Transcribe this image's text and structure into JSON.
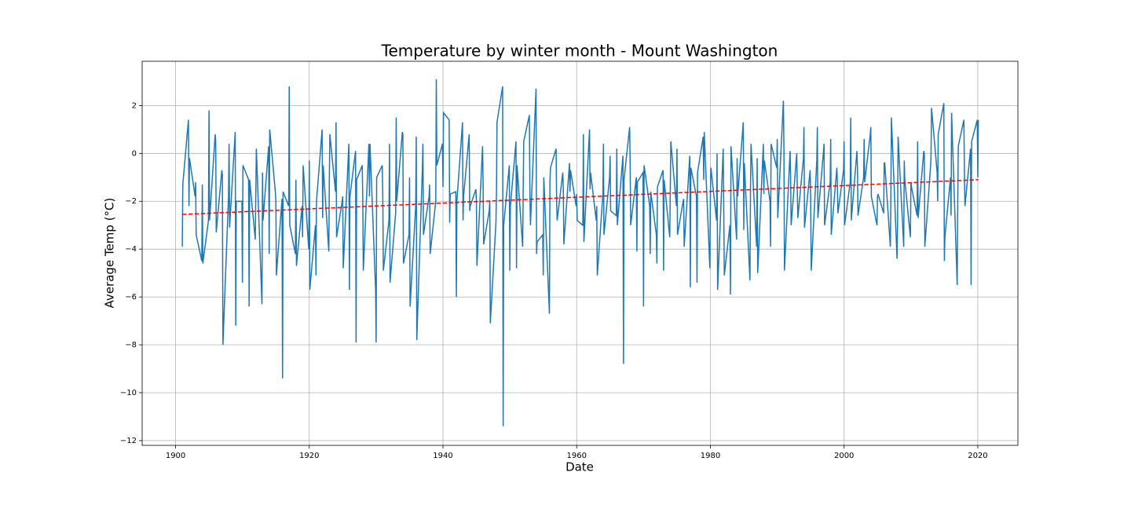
{
  "chart_data": {
    "type": "line",
    "title": "Temperature by winter month - Mount Washington",
    "x_label": "Date",
    "y_label": "Average Temp (°C)",
    "xlim": [
      1895,
      2026
    ],
    "xticks": [
      1900,
      1920,
      1940,
      1960,
      1980,
      2000,
      2020
    ],
    "ylim": [
      -12.2,
      3.85
    ],
    "yticks": [
      {
        "value": -12,
        "label": "−12"
      },
      {
        "value": -10,
        "label": "−10"
      },
      {
        "value": -8,
        "label": "−8"
      },
      {
        "value": -6,
        "label": "−6"
      },
      {
        "value": -4,
        "label": "−4"
      },
      {
        "value": -2,
        "label": "−2"
      },
      0,
      2
    ],
    "grid": true,
    "series": [
      {
        "color": "#1f77b4",
        "dash": false,
        "x": [
          1901,
          1901.08,
          1901.92,
          1902,
          1902.08,
          1902.92,
          1903,
          1903.08,
          1903.92,
          1904,
          1904.08,
          1904.92,
          1905,
          1905.08,
          1905.92,
          1906,
          1906.08,
          1906.92,
          1907,
          1907.08,
          1907.92,
          1908,
          1908.08,
          1908.92,
          1909,
          1909.08,
          1909.92,
          1910,
          1910.08,
          1910.92,
          1911,
          1911.08,
          1911.92,
          1912,
          1912.08,
          1912.92,
          1913,
          1913.08,
          1913.92,
          1914,
          1914.08,
          1914.92,
          1915,
          1915.08,
          1915.92,
          1916,
          1916.08,
          1916.92,
          1917,
          1917.08,
          1917.92,
          1918,
          1918.08,
          1918.92,
          1919,
          1919.08,
          1919.92,
          1920,
          1920.08,
          1920.92,
          1921,
          1921.08,
          1921.92,
          1922,
          1922.08,
          1922.92,
          1923,
          1923.08,
          1923.92,
          1924,
          1924.08,
          1924.92,
          1925,
          1925.08,
          1925.92,
          1926,
          1926.08,
          1926.92,
          1927,
          1927.08,
          1927.92,
          1928,
          1928.08,
          1928.92,
          1929,
          1929.08,
          1929.92,
          1930,
          1930.08,
          1930.92,
          1931,
          1931.08,
          1931.92,
          1932,
          1932.08,
          1932.92,
          1933,
          1933.08,
          1933.92,
          1934,
          1934.08,
          1934.92,
          1935,
          1935.08,
          1935.92,
          1936,
          1936.08,
          1936.92,
          1937,
          1937.08,
          1937.92,
          1938,
          1938.08,
          1938.92,
          1939,
          1939.08,
          1939.92,
          1940,
          1940.08,
          1940.92,
          1941,
          1941.08,
          1941.92,
          1942,
          1942.08,
          1942.92,
          1943,
          1943.08,
          1943.92,
          1944,
          1944.08,
          1944.92,
          1945,
          1945.08,
          1945.92,
          1946,
          1946.08,
          1946.92,
          1947,
          1947.08,
          1947.92,
          1948,
          1948.08,
          1948.92,
          1949,
          1949.08,
          1949.92,
          1950,
          1950.08,
          1950.92,
          1951,
          1951.08,
          1951.92,
          1952,
          1952.08,
          1952.92,
          1953,
          1953.08,
          1953.92,
          1954,
          1954.08,
          1954.92,
          1955,
          1955.08,
          1955.92,
          1956,
          1956.08,
          1956.92,
          1957,
          1957.08,
          1957.92,
          1958,
          1958.08,
          1958.92,
          1959,
          1959.08,
          1959.92,
          1960,
          1960.08,
          1960.92,
          1961,
          1961.08,
          1961.92,
          1962,
          1962.08,
          1962.92,
          1963,
          1963.08,
          1963.92,
          1964,
          1964.08,
          1964.92,
          1965,
          1965.08,
          1965.92,
          1966,
          1966.08,
          1966.92,
          1967,
          1967.08,
          1967.92,
          1968,
          1968.08,
          1968.92,
          1969,
          1969.08,
          1969.92,
          1970,
          1970.08,
          1970.92,
          1971,
          1971.08,
          1971.92,
          1972,
          1972.08,
          1972.92,
          1973,
          1973.08,
          1973.92,
          1974,
          1974.08,
          1974.92,
          1975,
          1975.08,
          1975.92,
          1976,
          1976.08,
          1976.92,
          1977,
          1977.08,
          1977.92,
          1978,
          1978.08,
          1978.92,
          1979,
          1979.08,
          1979.92,
          1980,
          1980.08,
          1980.92,
          1981,
          1981.08,
          1981.92,
          1982,
          1982.08,
          1982.92,
          1983,
          1983.08,
          1983.92,
          1984,
          1984.08,
          1984.92,
          1985,
          1985.08,
          1985.92,
          1986,
          1986.08,
          1986.92,
          1987,
          1987.08,
          1987.92,
          1988,
          1988.08,
          1988.92,
          1989,
          1989.08,
          1989.92,
          1990,
          1990.08,
          1990.92,
          1991,
          1991.08,
          1991.92,
          1992,
          1992.08,
          1992.92,
          1993,
          1993.08,
          1993.92,
          1994,
          1994.08,
          1994.92,
          1995,
          1995.08,
          1995.92,
          1996,
          1996.08,
          1996.92,
          1997,
          1997.08,
          1997.92,
          1998,
          1998.08,
          1998.92,
          1999,
          1999.08,
          1999.92,
          2000,
          2000.08,
          2000.92,
          2001,
          2001.08,
          2001.92,
          2002,
          2002.08,
          2002.92,
          2003,
          2003.08,
          2003.92,
          2004,
          2004.08,
          2004.92,
          2005,
          2005.08,
          2005.92,
          2006,
          2006.08,
          2006.92,
          2007,
          2007.08,
          2007.92,
          2008,
          2008.08,
          2008.92,
          2009,
          2009.08,
          2009.92,
          2010,
          2010.08,
          2010.92,
          2011,
          2011.08,
          2011.92,
          2012,
          2012.08,
          2012.92,
          2013,
          2013.08,
          2013.92,
          2014,
          2014.08,
          2014.92,
          2015,
          2015.08,
          2015.92,
          2016,
          2016.08,
          2016.92,
          2017,
          2017.08,
          2017.92,
          2018,
          2018.08,
          2018.92,
          2019,
          2019.08,
          2019.92,
          2020,
          2020.08
        ],
        "values": [
          -3.9,
          -1.3,
          1.4,
          -2.2,
          -0.2,
          -1.8,
          -1.2,
          -3.4,
          -4.5,
          -1.3,
          -4.6,
          -2.8,
          1.8,
          -2.8,
          0.8,
          0.5,
          -3.3,
          -0.7,
          -0.9,
          -8.0,
          -1.8,
          0.4,
          -3.1,
          0.9,
          -7.2,
          -2.0,
          -2.0,
          -5.4,
          -0.5,
          -1.1,
          -6.4,
          -1.1,
          -3.6,
          -1.7,
          0.2,
          -6.3,
          -0.8,
          -2.8,
          0.3,
          -4.2,
          1.0,
          -1.6,
          -2.0,
          -5.1,
          -1.9,
          -9.4,
          -1.6,
          -2.2,
          2.8,
          -3.0,
          -4.2,
          -1.1,
          -4.7,
          -2.2,
          -3.5,
          -0.5,
          -4.0,
          -0.3,
          -5.7,
          -3.0,
          -5.1,
          -2.0,
          1.0,
          -2.7,
          -0.5,
          -4.1,
          -1.1,
          0.8,
          -1.6,
          1.3,
          -3.5,
          -2.0,
          -1.8,
          -4.8,
          0.4,
          -5.7,
          -1.8,
          0.1,
          -7.9,
          -1.1,
          -0.5,
          -1.9,
          -4.9,
          0.4,
          -1.8,
          0.4,
          -5.7,
          -7.9,
          -1.0,
          -0.5,
          -1.9,
          -4.9,
          -2.8,
          0.4,
          -5.4,
          -2.5,
          1.5,
          -2.0,
          0.9,
          0.8,
          -4.6,
          -3.4,
          -1.0,
          -6.4,
          -2.2,
          0.7,
          -7.8,
          -0.6,
          0.4,
          -3.4,
          -1.8,
          -1.3,
          -4.2,
          -2.0,
          3.1,
          -0.5,
          0.4,
          -1.4,
          1.7,
          1.4,
          -2.9,
          -1.7,
          -1.6,
          -6.0,
          -2.0,
          1.3,
          -2.8,
          -1.8,
          0.8,
          -2.4,
          -2.2,
          -1.5,
          -2.0,
          -4.7,
          0.3,
          -1.2,
          -3.8,
          -2.4,
          -2.0,
          -7.1,
          -2.9,
          -1.6,
          1.3,
          2.8,
          -11.4,
          -3.0,
          -0.5,
          -4.9,
          -2.2,
          0.5,
          -4.8,
          -0.5,
          -3.9,
          -1.5,
          0.5,
          1.6,
          -1.5,
          -3.0,
          2.7,
          -4.2,
          -3.7,
          -3.4,
          -5.1,
          -1.0,
          -6.7,
          -1.2,
          -0.6,
          0.2,
          -2.0,
          -2.8,
          -0.8,
          -1.5,
          -3.8,
          -0.4,
          -1.6,
          -0.7,
          -2.2,
          -1.7,
          -2.8,
          -3.0,
          0.8,
          -3.7,
          1.0,
          -1.5,
          -0.8,
          -2.8,
          -2.2,
          -5.1,
          -1.7,
          0.4,
          -3.4,
          -1.0,
          -0.1,
          -2.4,
          -2.6,
          0.2,
          -3.0,
          -0.1,
          -8.8,
          -1.1,
          1.1,
          -0.5,
          -3.0,
          -1.0,
          -4.1,
          -1.2,
          -0.8,
          -6.4,
          -0.5,
          -2.2,
          -4.2,
          -1.6,
          -3.4,
          -4.6,
          -1.4,
          -0.7,
          -4.9,
          -1.1,
          -3.5,
          -1.6,
          0.5,
          -2.2,
          0.2,
          -3.4,
          -2.0,
          -1.9,
          -3.9,
          -0.1,
          -5.6,
          -0.6,
          -1.8,
          -5.4,
          -0.8,
          0.7,
          -1.1,
          0.9,
          -4.8,
          -1.8,
          -0.6,
          -2.8,
          0.0,
          -5.7,
          0.2,
          -2.3,
          -5.1,
          -3.0,
          -5.9,
          0.3,
          -3.6,
          -0.2,
          -1.8,
          1.3,
          -3.2,
          -0.4,
          -5.3,
          -1.5,
          0.4,
          -3.9,
          -0.2,
          -5.0,
          0.4,
          -1.7,
          -0.3,
          -2.0,
          -3.9,
          0.4,
          -0.6,
          0.6,
          -2.7,
          2.2,
          0.2,
          -4.9,
          0.1,
          -1.0,
          -3.0,
          0.0,
          -1.5,
          -2.7,
          -0.2,
          1.1,
          -3.1,
          -0.7,
          -1.9,
          -4.9,
          -0.3,
          1.1,
          -2.7,
          0.1,
          0.4,
          -3.0,
          -1.2,
          0.6,
          -3.4,
          -0.6,
          -1.3,
          -2.5,
          -0.7,
          0.5,
          -3.0,
          -1.2,
          1.5,
          -2.8,
          0.1,
          -0.6,
          -2.6,
          -1.0,
          0.6,
          -1.2,
          0.8,
          1.1,
          -1.8,
          -3.0,
          -1.8,
          -1.7,
          -2.5,
          -0.4,
          -0.4,
          -3.9,
          -1.7,
          1.5,
          -4.4,
          -2.9,
          0.7,
          -3.9,
          -0.3,
          -1.1,
          -3.5,
          -1.2,
          -1.4,
          -2.6,
          0.5,
          -2.7,
          0.1,
          0.0,
          -3.9,
          -0.6,
          -0.2,
          1.9,
          -0.8,
          -2.0,
          0.8,
          2.1,
          -4.5,
          -3.5,
          -1.0,
          -2.6,
          1.7,
          -5.5,
          -2.2,
          0.3,
          1.4,
          -0.8,
          -2.2,
          0.2,
          -5.5,
          0.5,
          1.4,
          -1.0,
          1.4
        ]
      },
      {
        "color": "#ff0000",
        "dash": true,
        "x": [
          1901,
          2020.08
        ],
        "values": [
          -2.55,
          -1.1
        ]
      }
    ]
  }
}
